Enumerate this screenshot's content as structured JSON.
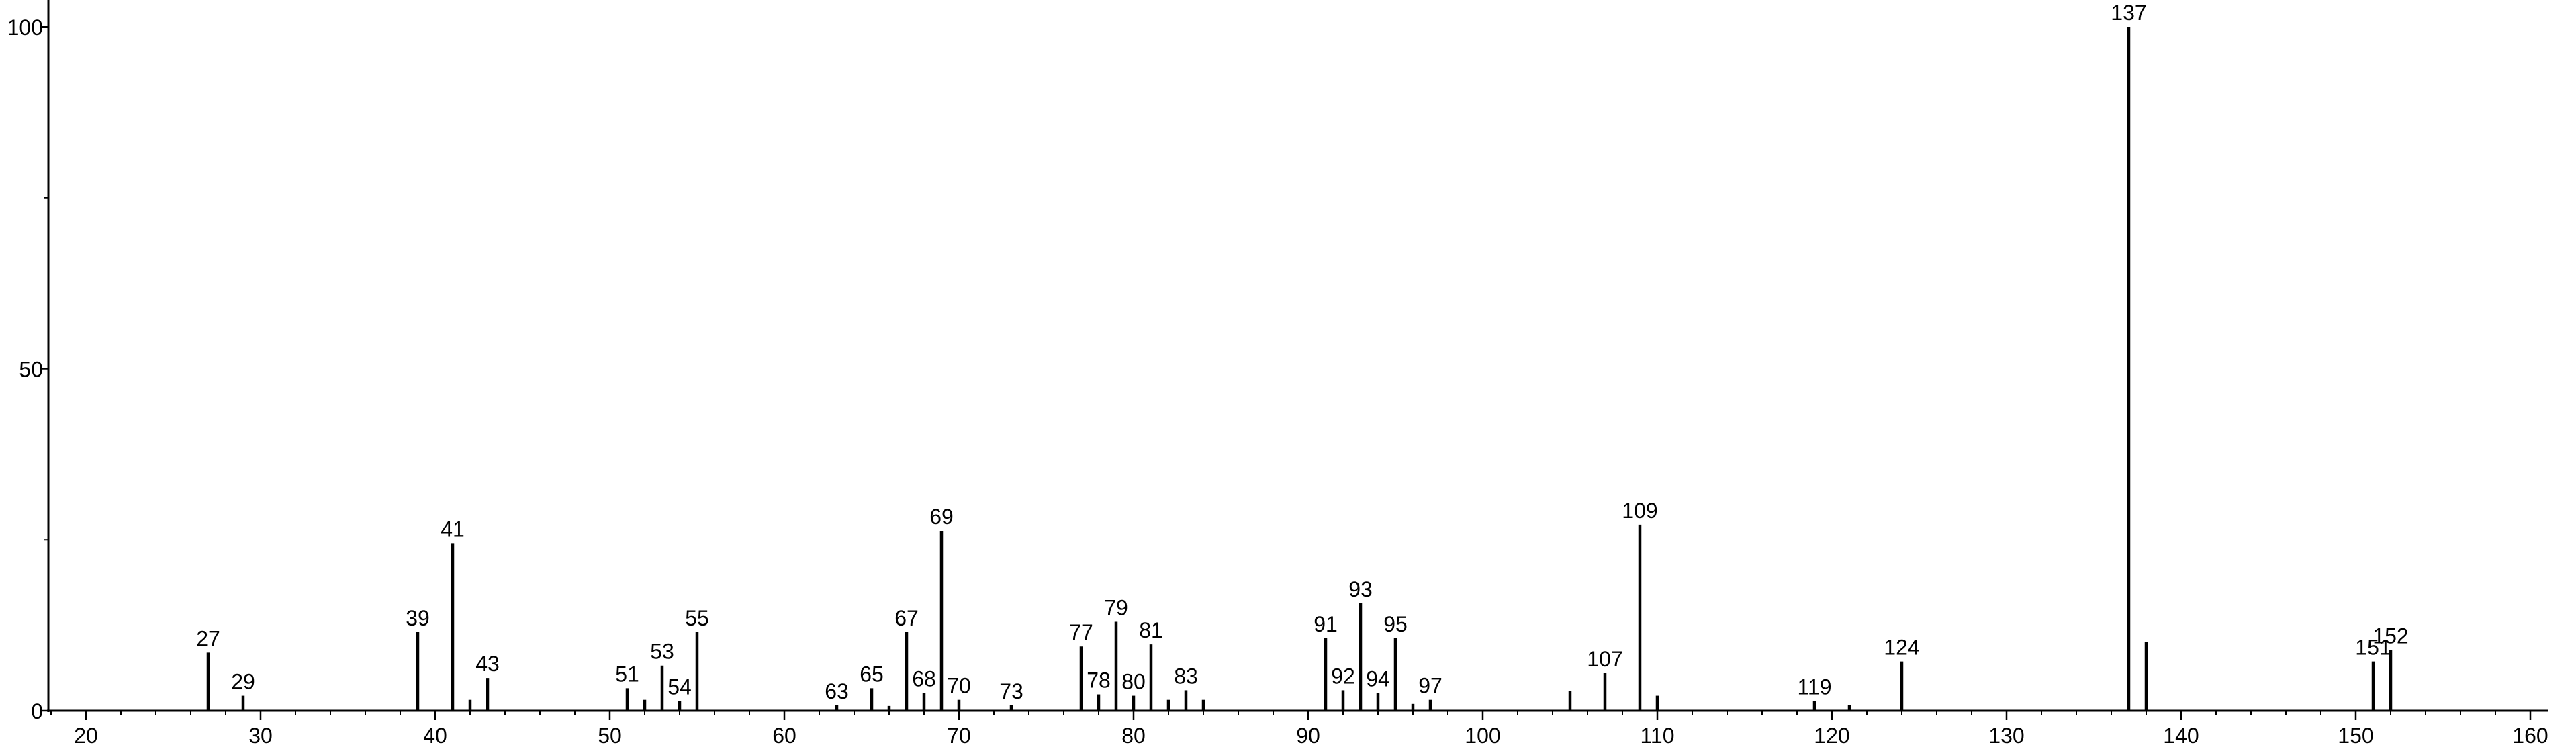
{
  "chart_data": {
    "type": "bar",
    "title": "",
    "xlabel": "",
    "ylabel": "",
    "xlim": [
      18,
      161
    ],
    "ylim": [
      0,
      100
    ],
    "x_ticks": [
      20,
      30,
      40,
      50,
      60,
      70,
      80,
      90,
      100,
      110,
      120,
      130,
      140,
      150,
      160
    ],
    "y_ticks": [
      0,
      50,
      100
    ],
    "grid": false,
    "legend": "none",
    "peaks": [
      {
        "x": 27,
        "y": 8.5,
        "label": "27"
      },
      {
        "x": 29,
        "y": 2.2,
        "label": "29"
      },
      {
        "x": 39,
        "y": 11.5,
        "label": "39"
      },
      {
        "x": 41,
        "y": 24.5,
        "label": "41"
      },
      {
        "x": 42,
        "y": 1.6,
        "label": ""
      },
      {
        "x": 43,
        "y": 4.8,
        "label": "43"
      },
      {
        "x": 51,
        "y": 3.3,
        "label": "51"
      },
      {
        "x": 52,
        "y": 1.6,
        "label": ""
      },
      {
        "x": 53,
        "y": 6.6,
        "label": "53"
      },
      {
        "x": 54,
        "y": 1.4,
        "label": "54"
      },
      {
        "x": 55,
        "y": 11.5,
        "label": "55"
      },
      {
        "x": 63,
        "y": 0.8,
        "label": "63"
      },
      {
        "x": 65,
        "y": 3.3,
        "label": "65"
      },
      {
        "x": 66,
        "y": 0.7,
        "label": ""
      },
      {
        "x": 67,
        "y": 11.5,
        "label": "67"
      },
      {
        "x": 68,
        "y": 2.6,
        "label": "68"
      },
      {
        "x": 69,
        "y": 26.3,
        "label": "69"
      },
      {
        "x": 70,
        "y": 1.6,
        "label": "70"
      },
      {
        "x": 73,
        "y": 0.8,
        "label": "73"
      },
      {
        "x": 77,
        "y": 9.4,
        "label": "77"
      },
      {
        "x": 78,
        "y": 2.4,
        "label": "78"
      },
      {
        "x": 79,
        "y": 13.0,
        "label": "79"
      },
      {
        "x": 80,
        "y": 2.2,
        "label": "80"
      },
      {
        "x": 81,
        "y": 9.7,
        "label": "81"
      },
      {
        "x": 82,
        "y": 1.6,
        "label": ""
      },
      {
        "x": 83,
        "y": 3.0,
        "label": "83"
      },
      {
        "x": 84,
        "y": 1.6,
        "label": ""
      },
      {
        "x": 91,
        "y": 10.6,
        "label": "91"
      },
      {
        "x": 92,
        "y": 3.0,
        "label": "92"
      },
      {
        "x": 93,
        "y": 15.7,
        "label": "93"
      },
      {
        "x": 94,
        "y": 2.6,
        "label": "94"
      },
      {
        "x": 95,
        "y": 10.6,
        "label": "95"
      },
      {
        "x": 96,
        "y": 1.0,
        "label": ""
      },
      {
        "x": 97,
        "y": 1.6,
        "label": "97"
      },
      {
        "x": 105,
        "y": 2.9,
        "label": ""
      },
      {
        "x": 107,
        "y": 5.5,
        "label": "107"
      },
      {
        "x": 109,
        "y": 27.2,
        "label": "109"
      },
      {
        "x": 110,
        "y": 2.2,
        "label": ""
      },
      {
        "x": 119,
        "y": 1.4,
        "label": "119"
      },
      {
        "x": 121,
        "y": 0.8,
        "label": ""
      },
      {
        "x": 124,
        "y": 7.2,
        "label": "124"
      },
      {
        "x": 137,
        "y": 100,
        "label": "137"
      },
      {
        "x": 138,
        "y": 10.1,
        "label": ""
      },
      {
        "x": 151,
        "y": 7.2,
        "label": "151"
      },
      {
        "x": 152,
        "y": 8.9,
        "label": "152"
      }
    ]
  }
}
